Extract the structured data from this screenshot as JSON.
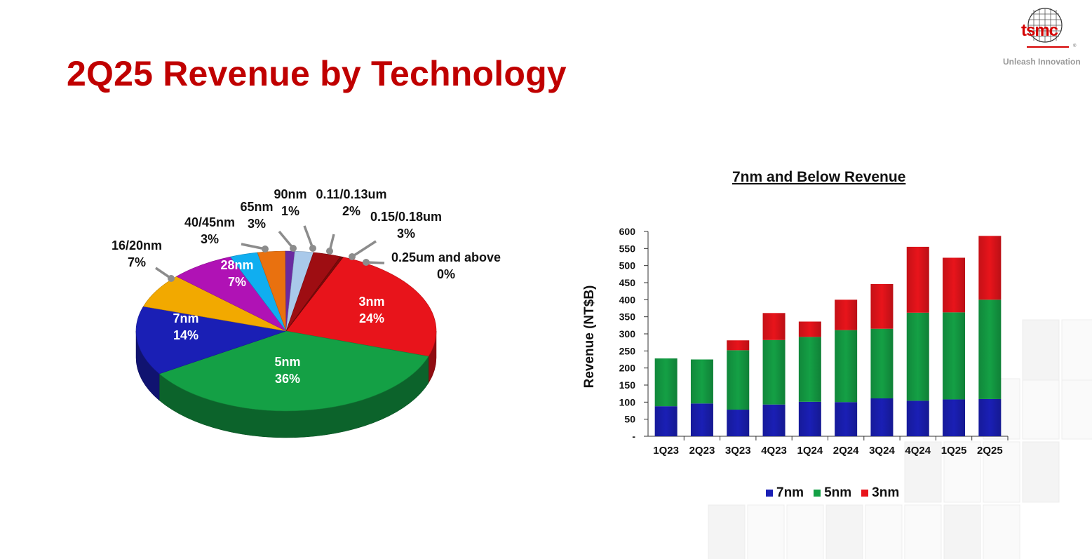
{
  "title": "2Q25 Revenue by Technology",
  "brand": {
    "logo_text": "tsmc",
    "tagline": "Unleash Innovation"
  },
  "chart_data": [
    {
      "type": "pie",
      "slices": [
        {
          "name": "3nm",
          "label": "3nm",
          "percent_label": "24%",
          "value": 24,
          "color": "#e8141b"
        },
        {
          "name": "5nm",
          "label": "5nm",
          "percent_label": "36%",
          "value": 36,
          "color": "#14a045"
        },
        {
          "name": "7nm",
          "label": "7nm",
          "percent_label": "14%",
          "value": 14,
          "color": "#1a1fb5"
        },
        {
          "name": "16/20nm",
          "label": "16/20nm",
          "percent_label": "7%",
          "value": 7,
          "color": "#f2a900"
        },
        {
          "name": "28nm",
          "label": "28nm",
          "percent_label": "7%",
          "value": 7,
          "color": "#b012b5"
        },
        {
          "name": "40/45nm",
          "label": "40/45nm",
          "percent_label": "3%",
          "value": 3,
          "color": "#10aef0"
        },
        {
          "name": "65nm",
          "label": "65nm",
          "percent_label": "3%",
          "value": 3,
          "color": "#e9710f"
        },
        {
          "name": "90nm",
          "label": "90nm",
          "percent_label": "1%",
          "value": 1,
          "color": "#6a2aa0"
        },
        {
          "name": "0.11/0.13um",
          "label": "0.11/0.13um",
          "percent_label": "2%",
          "value": 2,
          "color": "#a9c9ea"
        },
        {
          "name": "0.15/0.18um",
          "label": "0.15/0.18um",
          "percent_label": "3%",
          "value": 3,
          "color": "#9e0d12"
        },
        {
          "name": "0.25um and above",
          "label": "0.25um and above",
          "percent_label": "0%",
          "value": 0,
          "color": "#7a0a0a"
        }
      ]
    },
    {
      "type": "bar",
      "stacked": true,
      "title": "7nm and Below Revenue",
      "ylabel": "Revenue (NT$B)",
      "ylim": [
        0,
        600
      ],
      "yticks": [
        "-",
        "50",
        "100",
        "150",
        "200",
        "250",
        "300",
        "350",
        "400",
        "450",
        "500",
        "550",
        "600"
      ],
      "categories": [
        "1Q23",
        "2Q23",
        "3Q23",
        "4Q23",
        "1Q24",
        "2Q24",
        "3Q24",
        "4Q24",
        "1Q25",
        "2Q25"
      ],
      "series": [
        {
          "name": "7nm",
          "color": "#1a1fb5",
          "values": [
            88,
            96,
            78,
            93,
            101,
            100,
            111,
            104,
            108,
            109
          ]
        },
        {
          "name": "5nm",
          "color": "#14a045",
          "values": [
            140,
            129,
            174,
            189,
            190,
            211,
            204,
            258,
            255,
            291
          ]
        },
        {
          "name": "3nm",
          "color": "#e8141b",
          "values": [
            0,
            0,
            29,
            79,
            45,
            89,
            131,
            193,
            160,
            187
          ]
        }
      ],
      "legend_position": "bottom"
    }
  ]
}
